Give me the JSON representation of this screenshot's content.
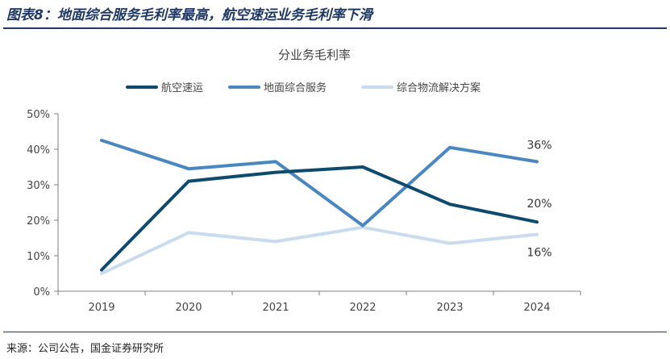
{
  "figure": {
    "title": "图表8：地面综合服务毛利率最高，航空速运业务毛利率下滑",
    "source": "来源：公司公告，国金证券研究所"
  },
  "chart_data": {
    "type": "line",
    "title": "分业务毛利率",
    "xlabel": "",
    "ylabel": "",
    "categories": [
      "2019",
      "2020",
      "2021",
      "2022",
      "2023",
      "2024"
    ],
    "ylim": [
      0,
      50
    ],
    "yticks": [
      "0%",
      "10%",
      "20%",
      "30%",
      "40%",
      "50%"
    ],
    "legend_position": "top",
    "series": [
      {
        "name": "航空速运",
        "color": "#0d4a6e",
        "values": [
          6,
          31,
          33.5,
          35,
          24.5,
          19.5
        ]
      },
      {
        "name": "地面综合服务",
        "color": "#4a86c0",
        "values": [
          42.5,
          34.5,
          36.5,
          18.5,
          40.5,
          36.5
        ]
      },
      {
        "name": "综合物流解决方案",
        "color": "#c9dced",
        "values": [
          5,
          16.5,
          14,
          18,
          13.5,
          16
        ]
      }
    ],
    "annotations": [
      {
        "text": "36%",
        "series": 1,
        "index": 5
      },
      {
        "text": "20%",
        "series": 0,
        "index": 5
      },
      {
        "text": "16%",
        "series": 2,
        "index": 5
      }
    ]
  }
}
